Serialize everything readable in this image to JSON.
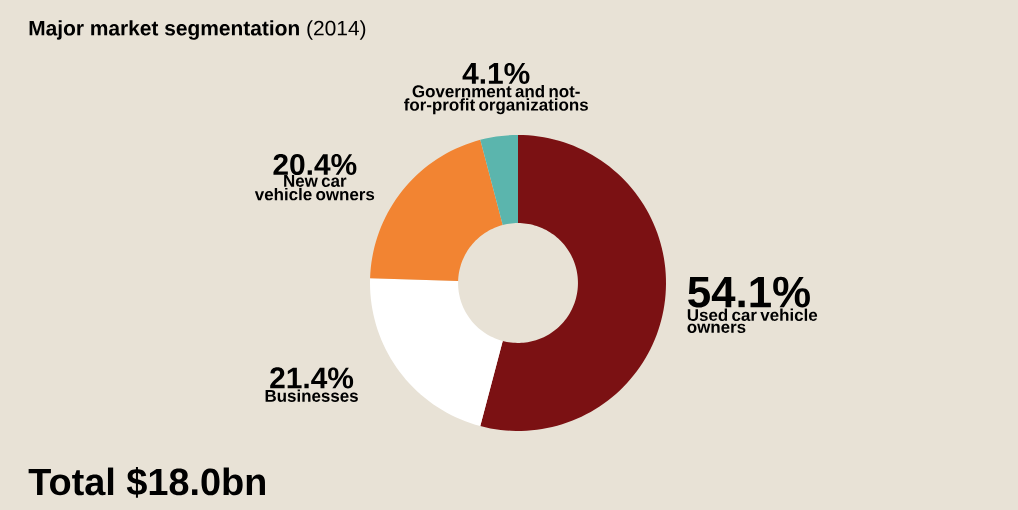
{
  "chart_data": {
    "type": "donut",
    "title": "**Major market segmentation** (2014)",
    "categories": [
      "Used car vehicle owners",
      "Businesses",
      "New car vehicle owners",
      "Government and not-for-profit organizations"
    ],
    "values": [
      54.1,
      21.4,
      20.4,
      4.1
    ],
    "colors": [
      "#7b1113",
      "#ffffff",
      "#f28432",
      "#5bb5ad"
    ],
    "value_labels": [
      "54.1%",
      "21.4%",
      "20.4%",
      "4.1%"
    ],
    "annotations": [
      "Total $18.0bn"
    ]
  }
}
